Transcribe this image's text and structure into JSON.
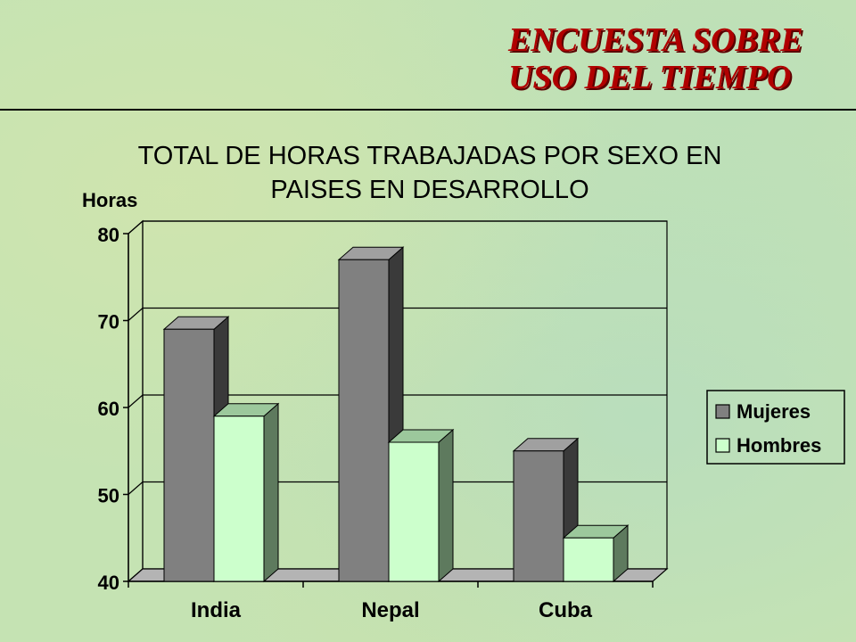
{
  "slide": {
    "title_line1": "ENCUESTA SOBRE",
    "title_line2": "USO DEL TIEMPO"
  },
  "chart_data": {
    "type": "bar",
    "title_line1": "TOTAL DE HORAS TRABAJADAS POR SEXO EN",
    "title_line2": "PAISES EN DESARROLLO",
    "ylabel": "Horas",
    "xlabel": "",
    "categories": [
      "India",
      "Nepal",
      "Cuba"
    ],
    "series": [
      {
        "name": "Mujeres",
        "values": [
          69,
          77,
          55
        ],
        "color": "#808080",
        "side": "#3a3a3a",
        "top": "#a0a0a0"
      },
      {
        "name": "Hombres",
        "values": [
          59,
          56,
          45
        ],
        "color": "#ccffcc",
        "side": "#5e7a5e",
        "top": "#9cc89c"
      }
    ],
    "ylim": [
      40,
      80
    ],
    "yticks": [
      40,
      50,
      60,
      70,
      80
    ],
    "grid": true,
    "legend_position": "right",
    "bar_style": "3d"
  }
}
